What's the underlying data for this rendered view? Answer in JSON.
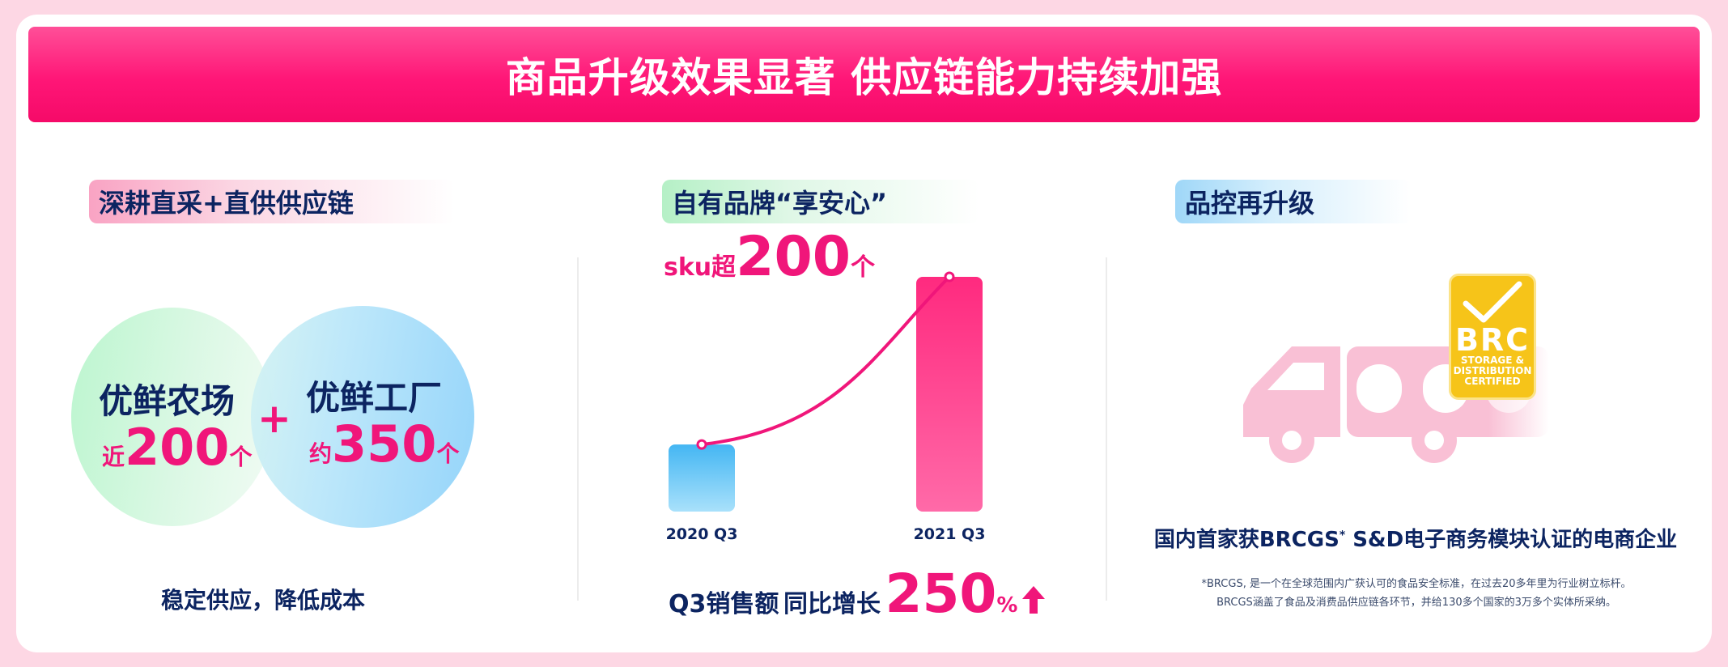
{
  "banner_title": "商品升级效果显著 供应链能力持续加强",
  "section1": {
    "title": "深耕直采+直供供应链",
    "farm": {
      "label": "优鲜农场",
      "prefix": "近",
      "number": "200",
      "unit": "个"
    },
    "factory": {
      "label": "优鲜工厂",
      "prefix": "约",
      "number": "350",
      "unit": "个"
    },
    "plus": "+",
    "caption": "稳定供应，降低成本"
  },
  "section2": {
    "title": "自有品牌“享安心”",
    "sku_prefix": "sku超",
    "sku_number": "200",
    "sku_unit": "个",
    "sales_label": "Q3销售额",
    "yoy_label": "同比增长",
    "growth_number": "250",
    "growth_unit": "%"
  },
  "chart_data": {
    "type": "bar",
    "categories": [
      "2020 Q3",
      "2021 Q3"
    ],
    "values": [
      1,
      3.5
    ],
    "ylim": [
      0,
      3.5
    ],
    "title": "",
    "xlabel": "",
    "ylabel": "",
    "grid": false,
    "trend_line": true,
    "colors": {
      "2020 Q3": "#5bc3f5",
      "2021 Q3": "#ff2f84",
      "trend": "#f0167a"
    }
  },
  "section3": {
    "title": "品控再升级",
    "badge": {
      "big": "BRC",
      "line1": "STORAGE &",
      "line2": "DISTRIBUTION",
      "line3": "CERTIFIED"
    },
    "headline_pre": "国内首家获BRCGS",
    "headline_sup": "*",
    "headline_post": " S&D电子商务模块认证的电商企业",
    "footnote1": "*BRCGS, 是一个在全球范围内广获认可的食品安全标准，在过去20多年里为行业树立标杆。",
    "footnote2": "BRCGS涵盖了食品及消费品供应链各环节，并给130多个国家的3万多个实体所采纳。"
  },
  "colors": {
    "accent": "#f0167a",
    "navy": "#0c2461",
    "background": "#fdd7e4"
  }
}
